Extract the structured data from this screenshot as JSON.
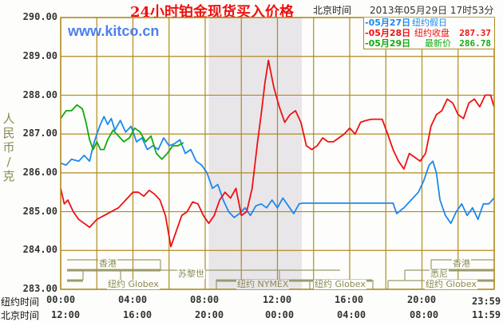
{
  "header": {
    "title": "24小时铂金现货买入价格",
    "beijing_time_label": "北京时间",
    "timestamp": "2013年05月29日 17时53分",
    "watermark": "www.kitco.cn"
  },
  "legend": {
    "items": [
      {
        "date": "-05月27日",
        "desc": "纽约假日",
        "value": "",
        "color": "#1e88ee"
      },
      {
        "date": "-05月28日",
        "desc": "纽约收盘",
        "value": "287.37",
        "color": "#ee1111"
      },
      {
        "date": "-05月29日",
        "desc": "最新价",
        "value": "286.78",
        "color": "#11aa11"
      }
    ]
  },
  "axes": {
    "y_title": [
      "人",
      "民",
      "币",
      "/",
      "克"
    ],
    "y_ticks": [
      "290.00",
      "289.00",
      "288.00",
      "287.00",
      "286.00",
      "285.00",
      "284.00",
      "283.00"
    ],
    "x_row_ny_label": "纽约时间",
    "x_row_bj_label": "北京时间",
    "x_ticks_ny": [
      "00:00",
      "04:00",
      "08:00",
      "12:00",
      "16:00",
      "20:00",
      "23:59"
    ],
    "x_ticks_bj": [
      "12:00",
      "16:00",
      "20:00",
      "00:00",
      "04:00",
      "08:00",
      "11:59"
    ]
  },
  "sessions": {
    "hongkong_1": "香港",
    "zurich": "苏黎世",
    "ny_globex_1": "纽约 Globex",
    "ny_nymex": "纽约 NYMEX",
    "ny_globex_2": "纽约 Globex",
    "sydney": "悉尼",
    "hongkong_2": "香港",
    "ny_globex_3": "纽约 Globex"
  },
  "colors": {
    "grid": "#b08a1e",
    "shade": "#e9e6ea",
    "session": "#9c9a6a",
    "may27": "#1e88ee",
    "may28": "#ee1111",
    "may29": "#11aa11"
  },
  "chart_data": {
    "type": "line",
    "title": "24小时铂金现货买入价格",
    "xlabel": "纽约时间 / 北京时间",
    "ylabel": "人民币/克",
    "ylim": [
      283.0,
      290.0
    ],
    "xlim_hours_ny": [
      0,
      24
    ],
    "grid": true,
    "legend_position": "top-right",
    "shaded_region_hours_ny": [
      8.2,
      13.35
    ],
    "series": [
      {
        "name": "05月27日 纽约假日",
        "color": "#1e88ee",
        "x_hours": [
          0,
          0.3,
          0.6,
          1.0,
          1.3,
          1.6,
          1.8,
          2.0,
          2.2,
          2.4,
          2.6,
          2.8,
          3.0,
          3.3,
          3.6,
          3.9,
          4.2,
          4.5,
          4.8,
          5.1,
          5.4,
          5.7,
          6.0,
          6.3,
          6.6,
          6.9,
          7.2,
          7.5,
          7.8,
          8.1,
          8.4,
          8.7,
          9.0,
          9.3,
          9.6,
          9.9,
          10.2,
          10.5,
          10.8,
          11.1,
          11.4,
          11.7,
          12.0,
          12.3,
          12.6,
          12.9,
          13.2,
          13.4,
          14.0,
          15.0,
          16.0,
          17.0,
          18.0,
          18.4,
          18.6,
          19.0,
          19.4,
          19.8,
          20.1,
          20.4,
          20.6,
          20.8,
          21.0,
          21.3,
          21.6,
          21.9,
          22.2,
          22.5,
          22.8,
          23.1,
          23.4,
          23.7,
          23.99
        ],
        "values": [
          286.25,
          286.2,
          286.35,
          286.3,
          286.45,
          286.3,
          286.7,
          287.0,
          287.25,
          287.45,
          287.25,
          287.4,
          287.1,
          287.35,
          287.05,
          287.2,
          286.8,
          286.9,
          286.6,
          286.7,
          286.6,
          286.9,
          286.7,
          286.75,
          286.85,
          286.5,
          286.6,
          286.3,
          286.2,
          286.0,
          285.6,
          285.7,
          285.3,
          285.0,
          284.85,
          284.95,
          285.1,
          284.9,
          285.15,
          285.2,
          285.1,
          285.3,
          285.1,
          285.35,
          285.15,
          284.95,
          285.2,
          285.22,
          285.22,
          285.22,
          285.22,
          285.22,
          285.22,
          285.22,
          284.95,
          285.1,
          285.3,
          285.5,
          285.8,
          286.2,
          286.3,
          286.0,
          285.3,
          284.9,
          284.7,
          285.0,
          285.2,
          284.9,
          285.1,
          284.8,
          285.2,
          285.2,
          285.35
        ]
      },
      {
        "name": "05月28日 纽约收盘 287.37",
        "color": "#ee1111",
        "x_hours": [
          0,
          0.2,
          0.4,
          0.7,
          1.0,
          1.3,
          1.6,
          2.0,
          2.4,
          2.8,
          3.2,
          3.6,
          4.0,
          4.3,
          4.6,
          4.9,
          5.2,
          5.5,
          5.8,
          6.1,
          6.4,
          6.7,
          7.0,
          7.3,
          7.6,
          7.9,
          8.2,
          8.5,
          8.8,
          9.1,
          9.4,
          9.7,
          10.0,
          10.3,
          10.6,
          10.9,
          11.1,
          11.3,
          11.5,
          11.8,
          12.1,
          12.4,
          12.7,
          13.0,
          13.3,
          13.6,
          13.9,
          14.2,
          14.5,
          14.8,
          15.1,
          15.4,
          15.7,
          16.0,
          16.3,
          16.6,
          16.9,
          17.2,
          17.5,
          17.8,
          18.1,
          18.4,
          18.7,
          19.0,
          19.3,
          19.6,
          19.9,
          20.2,
          20.5,
          20.8,
          21.1,
          21.4,
          21.7,
          22.0,
          22.3,
          22.6,
          22.9,
          23.2,
          23.5,
          23.8,
          23.99
        ],
        "values": [
          285.6,
          285.2,
          285.3,
          285.0,
          284.8,
          284.7,
          284.6,
          284.8,
          284.9,
          285.0,
          285.1,
          285.3,
          285.5,
          285.5,
          285.4,
          285.55,
          285.45,
          285.3,
          284.9,
          284.1,
          284.5,
          284.9,
          285.0,
          285.25,
          285.2,
          284.9,
          284.7,
          284.9,
          285.3,
          285.5,
          285.35,
          285.6,
          284.9,
          285.0,
          285.6,
          286.8,
          287.5,
          288.3,
          288.9,
          288.2,
          287.7,
          287.3,
          287.5,
          287.6,
          287.3,
          286.7,
          286.6,
          286.7,
          286.9,
          286.8,
          286.8,
          286.9,
          287.0,
          287.15,
          287.0,
          287.3,
          287.35,
          287.38,
          287.38,
          287.38,
          287.0,
          286.6,
          286.3,
          286.1,
          286.5,
          286.4,
          286.3,
          286.5,
          287.2,
          287.5,
          287.6,
          287.9,
          287.8,
          287.5,
          287.4,
          287.8,
          287.9,
          287.7,
          288.0,
          288.0,
          287.7
        ]
      },
      {
        "name": "05月29日 最新价 286.78",
        "color": "#11aa11",
        "x_hours": [
          0,
          0.3,
          0.6,
          0.9,
          1.2,
          1.4,
          1.6,
          1.8,
          2.0,
          2.2,
          2.4,
          2.6,
          2.9,
          3.2,
          3.5,
          3.8,
          4.1,
          4.4,
          4.7,
          5.0,
          5.3,
          5.6,
          5.9,
          6.2,
          6.5,
          6.8
        ],
        "values": [
          287.4,
          287.6,
          287.6,
          287.75,
          287.65,
          287.3,
          286.85,
          286.6,
          286.8,
          286.6,
          286.6,
          286.85,
          287.1,
          286.95,
          286.8,
          286.9,
          287.15,
          287.05,
          286.8,
          286.95,
          286.5,
          286.35,
          286.5,
          286.7,
          286.7,
          286.78
        ]
      }
    ]
  }
}
